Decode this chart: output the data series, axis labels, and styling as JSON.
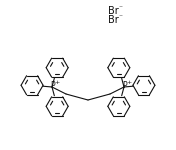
{
  "bg_color": "#ffffff",
  "line_color": "#111111",
  "text_color": "#111111",
  "line_width": 0.8,
  "fig_width": 1.76,
  "fig_height": 1.5,
  "dpi": 100,
  "br_label_1": "Br",
  "br_label_2": "Br",
  "br_charge": "⁻",
  "p_label": "P",
  "p_charge": "+"
}
